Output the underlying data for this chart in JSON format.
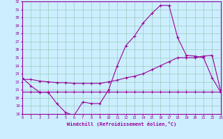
{
  "x": [
    0,
    1,
    2,
    3,
    4,
    5,
    6,
    7,
    8,
    9,
    10,
    11,
    12,
    13,
    14,
    15,
    16,
    17,
    18,
    19,
    20,
    21,
    22,
    23
  ],
  "windchill": [
    22.5,
    21.5,
    20.7,
    20.7,
    19.3,
    18.2,
    17.8,
    19.5,
    19.3,
    19.3,
    21.0,
    24.0,
    26.5,
    27.7,
    29.3,
    30.5,
    31.5,
    31.5,
    27.5,
    25.3,
    25.2,
    25.0,
    22.5,
    20.7
  ],
  "line_flat": [
    20.8,
    20.8,
    20.8,
    20.8,
    20.8,
    20.8,
    20.8,
    20.8,
    20.8,
    20.8,
    20.8,
    20.8,
    20.8,
    20.8,
    20.8,
    20.8,
    20.8,
    20.8,
    20.8,
    20.8,
    20.8,
    20.8,
    20.8,
    20.8
  ],
  "line_diag": [
    22.3,
    22.3,
    22.1,
    22.0,
    21.9,
    21.9,
    21.8,
    21.8,
    21.8,
    21.8,
    22.0,
    22.2,
    22.5,
    22.7,
    23.0,
    23.5,
    24.0,
    24.5,
    25.0,
    25.0,
    25.0,
    25.2,
    25.3,
    20.8
  ],
  "ylim": [
    18,
    32
  ],
  "yticks": [
    18,
    19,
    20,
    21,
    22,
    23,
    24,
    25,
    26,
    27,
    28,
    29,
    30,
    31,
    32
  ],
  "xlim": [
    0,
    23
  ],
  "xticks": [
    0,
    1,
    2,
    3,
    4,
    5,
    6,
    7,
    8,
    9,
    10,
    11,
    12,
    13,
    14,
    15,
    16,
    17,
    18,
    19,
    20,
    21,
    22,
    23
  ],
  "line_color": "#990099",
  "bg_color": "#cceeff",
  "grid_color": "#99ccbb",
  "xlabel": "Windchill (Refroidissement éolien,°C)",
  "marker": "+",
  "linewidth": 0.8,
  "markersize": 3.0
}
